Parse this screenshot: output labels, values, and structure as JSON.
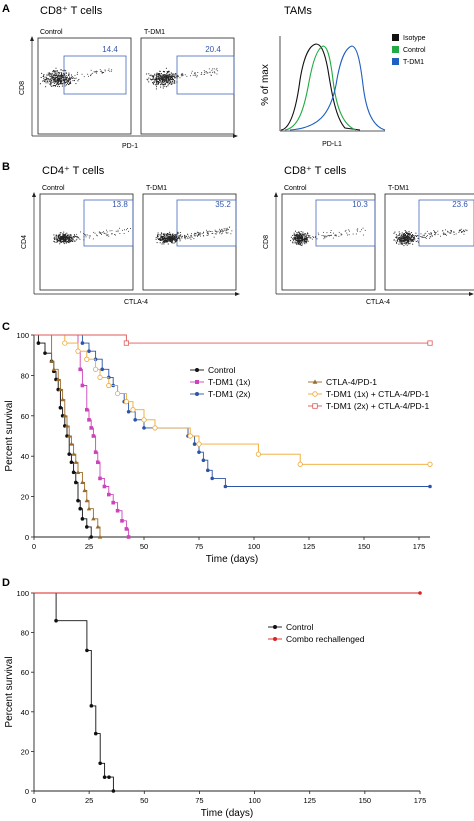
{
  "panels": {
    "A": {
      "label": "A",
      "cd8_title": "CD8⁺ T cells",
      "tams_title": "TAMs",
      "plots": [
        {
          "name": "Control",
          "gate": "14.4",
          "xaxis": "",
          "yaxis": "CD8"
        },
        {
          "name": "T-DM1",
          "gate": "20.4",
          "xaxis": "PD-1",
          "yaxis": ""
        }
      ],
      "histogram": {
        "ylabel": "% of max",
        "xlabel": "PD-L1",
        "legend": [
          {
            "name": "Isotype",
            "color": "#111111"
          },
          {
            "name": "Control",
            "color": "#22aa44"
          },
          {
            "name": "T-DM1",
            "color": "#1f5fbf"
          }
        ]
      }
    },
    "B": {
      "label": "B",
      "cd4_title": "CD4⁺ T cells",
      "cd8_title": "CD8⁺ T cells",
      "plots": [
        {
          "name": "Control",
          "gate": "13.8",
          "xaxis": "",
          "yaxis": "CD4"
        },
        {
          "name": "T-DM1",
          "gate": "35.2",
          "xaxis": "CTLA-4",
          "yaxis": ""
        },
        {
          "name": "Control",
          "gate": "10.3",
          "xaxis": "",
          "yaxis": "CD8"
        },
        {
          "name": "T-DM1",
          "gate": "23.6",
          "xaxis": "CTLA-4",
          "yaxis": ""
        }
      ]
    }
  },
  "chart_data": [
    {
      "panel": "C",
      "type": "line",
      "step": true,
      "xlabel": "Time (days)",
      "ylabel": "Percent survival",
      "xlim": [
        0,
        180
      ],
      "ylim": [
        0,
        100
      ],
      "xticks": [
        0,
        25,
        50,
        75,
        100,
        125,
        150,
        175
      ],
      "yticks": [
        0,
        20,
        40,
        60,
        80,
        100
      ],
      "series": [
        {
          "name": "Control",
          "color": "#111111",
          "marker": "filled-circle",
          "points": [
            [
              0,
              100
            ],
            [
              2,
              96
            ],
            [
              5,
              91
            ],
            [
              8,
              87
            ],
            [
              9,
              82
            ],
            [
              10,
              78
            ],
            [
              11,
              73
            ],
            [
              12,
              64
            ],
            [
              13,
              60
            ],
            [
              14,
              55
            ],
            [
              15,
              50
            ],
            [
              16,
              41
            ],
            [
              17,
              37
            ],
            [
              18,
              32
            ],
            [
              19,
              27
            ],
            [
              20,
              18
            ],
            [
              21,
              14
            ],
            [
              22,
              9
            ],
            [
              24,
              5
            ],
            [
              26,
              0
            ]
          ]
        },
        {
          "name": "T-DM1 (1x)",
          "color": "#cc44bb",
          "marker": "filled-square",
          "points": [
            [
              0,
              100
            ],
            [
              20,
              92
            ],
            [
              21,
              83
            ],
            [
              22,
              75
            ],
            [
              24,
              63
            ],
            [
              25,
              58
            ],
            [
              26,
              54
            ],
            [
              27,
              50
            ],
            [
              28,
              42
            ],
            [
              29,
              37
            ],
            [
              30,
              29
            ],
            [
              32,
              25
            ],
            [
              34,
              21
            ],
            [
              36,
              17
            ],
            [
              38,
              13
            ],
            [
              40,
              8
            ],
            [
              42,
              4
            ],
            [
              43,
              0
            ]
          ]
        },
        {
          "name": "T-DM1 (2x)",
          "color": "#2a55a8",
          "marker": "filled-circle",
          "points": [
            [
              0,
              100
            ],
            [
              22,
              96
            ],
            [
              25,
              92
            ],
            [
              28,
              88
            ],
            [
              31,
              83
            ],
            [
              34,
              79
            ],
            [
              36,
              75
            ],
            [
              38,
              71
            ],
            [
              41,
              67
            ],
            [
              43,
              62
            ],
            [
              46,
              58
            ],
            [
              50,
              54
            ],
            [
              70,
              50
            ],
            [
              73,
              46
            ],
            [
              75,
              42
            ],
            [
              77,
              38
            ],
            [
              79,
              33
            ],
            [
              81,
              29
            ],
            [
              87,
              25
            ],
            [
              180,
              25
            ]
          ]
        },
        {
          "name": "CTLA-4/PD-1",
          "color": "#9a6a2a",
          "marker": "filled-triangle",
          "points": [
            [
              0,
              100
            ],
            [
              8,
              87
            ],
            [
              9,
              83
            ],
            [
              11,
              78
            ],
            [
              12,
              73
            ],
            [
              13,
              68
            ],
            [
              14,
              60
            ],
            [
              15,
              55
            ],
            [
              16,
              50
            ],
            [
              17,
              46
            ],
            [
              18,
              41
            ],
            [
              19,
              37
            ],
            [
              20,
              32
            ],
            [
              22,
              27
            ],
            [
              23,
              23
            ],
            [
              24,
              18
            ],
            [
              25,
              14
            ],
            [
              27,
              9
            ],
            [
              29,
              5
            ],
            [
              30,
              0
            ]
          ]
        },
        {
          "name": "T-DM1 (1x) + CTLA-4/PD-1",
          "color": "#f0a830",
          "marker": "open-circle",
          "points": [
            [
              0,
              100
            ],
            [
              14,
              96
            ],
            [
              20,
              92
            ],
            [
              24,
              88
            ],
            [
              28,
              83
            ],
            [
              30,
              79
            ],
            [
              34,
              75
            ],
            [
              38,
              71
            ],
            [
              42,
              67
            ],
            [
              45,
              63
            ],
            [
              50,
              58
            ],
            [
              55,
              54
            ],
            [
              71,
              50
            ],
            [
              75,
              46
            ],
            [
              102,
              41
            ],
            [
              121,
              36
            ],
            [
              180,
              36
            ]
          ]
        },
        {
          "name": "T-DM1 (2x) + CTLA-4/PD-1",
          "color": "#e05a5a",
          "marker": "open-square",
          "points": [
            [
              0,
              100
            ],
            [
              42,
              96
            ],
            [
              180,
              96
            ]
          ]
        }
      ]
    },
    {
      "panel": "D",
      "type": "line",
      "step": true,
      "xlabel": "Time (days)",
      "ylabel": "Percent survival",
      "xlim": [
        0,
        175
      ],
      "ylim": [
        0,
        100
      ],
      "xticks": [
        0,
        25,
        50,
        75,
        100,
        125,
        150,
        175
      ],
      "yticks": [
        0,
        20,
        40,
        60,
        80,
        100
      ],
      "series": [
        {
          "name": "Control",
          "color": "#111111",
          "marker": "filled-circle",
          "points": [
            [
              0,
              100
            ],
            [
              10,
              86
            ],
            [
              24,
              71
            ],
            [
              26,
              43
            ],
            [
              28,
              29
            ],
            [
              30,
              14
            ],
            [
              32,
              7
            ],
            [
              34,
              7
            ],
            [
              36,
              0
            ]
          ]
        },
        {
          "name": "Combo rechallenged",
          "color": "#dd2222",
          "marker": "filled-circle",
          "points": [
            [
              0,
              100
            ],
            [
              175,
              100
            ]
          ]
        }
      ]
    }
  ]
}
